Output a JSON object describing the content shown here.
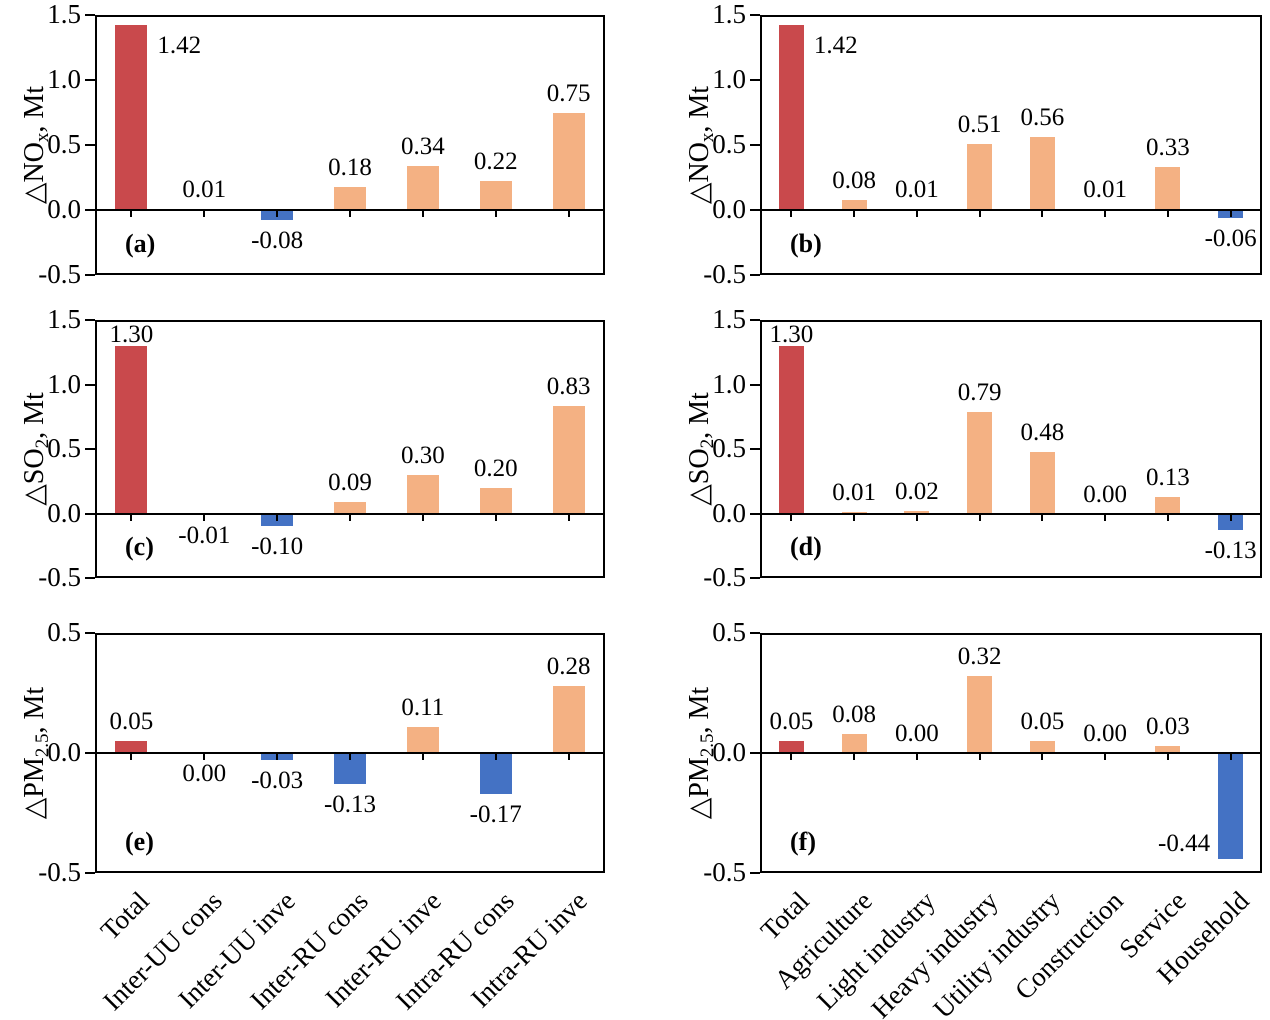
{
  "figure": {
    "description": "Six-panel bar chart figure of emission changes (NOx, SO2, PM2.5) by flow type and by sector",
    "colors": {
      "total_red": "#C9494C",
      "positive_orange": "#F4B183",
      "negative_blue": "#4472C4",
      "axis_black": "#000000",
      "background": "#FFFFFF"
    }
  },
  "chart_data": [
    {
      "type": "bar",
      "tag": "(a)",
      "col": "left",
      "row": 0,
      "ylabel_text": "△NOx, Mt",
      "ylabel": {
        "pre": "△NO",
        "sub": "x",
        "post": ", Mt"
      },
      "ylim": [
        -0.5,
        1.5
      ],
      "yticks": [
        "1.5",
        "1.0",
        "0.5",
        "0.0",
        "-0.5"
      ],
      "grid": false,
      "legend": "none",
      "categories": [
        "Total",
        "Inter-UU cons",
        "Inter-UU inve",
        "Inter-RU cons",
        "Inter-RU inve",
        "Intra-RU cons",
        "Intra-RU inve"
      ],
      "values": [
        1.42,
        0.01,
        -0.08,
        0.18,
        0.34,
        0.22,
        0.75
      ],
      "labels": [
        "1.42",
        "0.01",
        "-0.08",
        "0.18",
        "0.34",
        "0.22",
        "0.75"
      ],
      "label_side": [
        "right",
        "above",
        "below",
        "above",
        "above",
        "above",
        "above"
      ]
    },
    {
      "type": "bar",
      "tag": "(b)",
      "col": "right",
      "row": 0,
      "ylabel_text": "△NOx, Mt",
      "ylabel": {
        "pre": "△NO",
        "sub": "x",
        "post": ", Mt"
      },
      "ylim": [
        -0.5,
        1.5
      ],
      "yticks": [
        "1.5",
        "1.0",
        "0.5",
        "0.0",
        "-0.5"
      ],
      "grid": false,
      "legend": "none",
      "categories": [
        "Total",
        "Agriculture",
        "Light industry",
        "Heavy industry",
        "Utility industry",
        "Construction",
        "Service",
        "Household"
      ],
      "values": [
        1.42,
        0.08,
        0.01,
        0.51,
        0.56,
        0.01,
        0.33,
        -0.06
      ],
      "labels": [
        "1.42",
        "0.08",
        "0.01",
        "0.51",
        "0.56",
        "0.01",
        "0.33",
        "-0.06"
      ],
      "label_side": [
        "right",
        "above",
        "above",
        "above",
        "above",
        "above",
        "above",
        "below"
      ]
    },
    {
      "type": "bar",
      "tag": "(c)",
      "col": "left",
      "row": 1,
      "ylabel_text": "△SO2, Mt",
      "ylabel": {
        "pre": "△SO",
        "sub": "2",
        "post": ", Mt"
      },
      "ylim": [
        -0.5,
        1.5
      ],
      "yticks": [
        "1.5",
        "1.0",
        "0.5",
        "0.0",
        "-0.5"
      ],
      "grid": false,
      "legend": "none",
      "categories": [
        "Total",
        "Inter-UU cons",
        "Inter-UU inve",
        "Inter-RU cons",
        "Inter-RU inve",
        "Intra-RU cons",
        "Intra-RU inve"
      ],
      "values": [
        1.3,
        -0.01,
        -0.1,
        0.09,
        0.3,
        0.2,
        0.83
      ],
      "labels": [
        "1.30",
        "-0.01",
        "-0.10",
        "0.09",
        "0.30",
        "0.20",
        "0.83"
      ],
      "label_side": [
        "above",
        "below",
        "below",
        "above",
        "above",
        "above",
        "above"
      ]
    },
    {
      "type": "bar",
      "tag": "(d)",
      "col": "right",
      "row": 1,
      "ylabel_text": "△SO2, Mt",
      "ylabel": {
        "pre": "△SO",
        "sub": "2",
        "post": ", Mt"
      },
      "ylim": [
        -0.5,
        1.5
      ],
      "yticks": [
        "1.5",
        "1.0",
        "0.5",
        "0.0",
        "-0.5"
      ],
      "grid": false,
      "legend": "none",
      "categories": [
        "Total",
        "Agriculture",
        "Light industry",
        "Heavy industry",
        "Utility industry",
        "Construction",
        "Service",
        "Household"
      ],
      "values": [
        1.3,
        0.01,
        0.02,
        0.79,
        0.48,
        0.0,
        0.13,
        -0.13
      ],
      "labels": [
        "1.30",
        "0.01",
        "0.02",
        "0.79",
        "0.48",
        "0.00",
        "0.13",
        "-0.13"
      ],
      "label_side": [
        "above",
        "above",
        "above",
        "above",
        "above",
        "above",
        "above",
        "below"
      ]
    },
    {
      "type": "bar",
      "tag": "(e)",
      "col": "left",
      "row": 2,
      "ylabel_text": "△PM2.5, Mt",
      "ylabel": {
        "pre": "△PM",
        "sub": "2.5",
        "post": ", Mt"
      },
      "ylim": [
        -0.5,
        0.5
      ],
      "yticks": [
        "0.5",
        "0.0",
        "-0.5"
      ],
      "grid": false,
      "legend": "none",
      "categories": [
        "Total",
        "Inter-UU cons",
        "Inter-UU inve",
        "Inter-RU cons",
        "Inter-RU inve",
        "Intra-RU cons",
        "Intra-RU inve"
      ],
      "values": [
        0.05,
        0.0,
        -0.03,
        -0.13,
        0.11,
        -0.17,
        0.28
      ],
      "labels": [
        "0.05",
        "0.00",
        "-0.03",
        "-0.13",
        "0.11",
        "-0.17",
        "0.28"
      ],
      "label_side": [
        "above",
        "below",
        "below",
        "below",
        "above",
        "below",
        "above"
      ]
    },
    {
      "type": "bar",
      "tag": "(f)",
      "col": "right",
      "row": 2,
      "ylabel_text": "△PM2.5, Mt",
      "ylabel": {
        "pre": "△PM",
        "sub": "2.5",
        "post": ", Mt"
      },
      "ylim": [
        -0.5,
        0.5
      ],
      "yticks": [
        "0.5",
        "0.0",
        "-0.5"
      ],
      "grid": false,
      "legend": "none",
      "categories": [
        "Total",
        "Agriculture",
        "Light industry",
        "Heavy industry",
        "Utility industry",
        "Construction",
        "Service",
        "Household"
      ],
      "values": [
        0.05,
        0.08,
        0.0,
        0.32,
        0.05,
        0.0,
        0.03,
        -0.44
      ],
      "labels": [
        "0.05",
        "0.08",
        "0.00",
        "0.32",
        "0.05",
        "0.00",
        "0.03",
        "-0.44"
      ],
      "label_side": [
        "above",
        "above",
        "above",
        "above",
        "above",
        "above",
        "above",
        "left"
      ]
    }
  ]
}
